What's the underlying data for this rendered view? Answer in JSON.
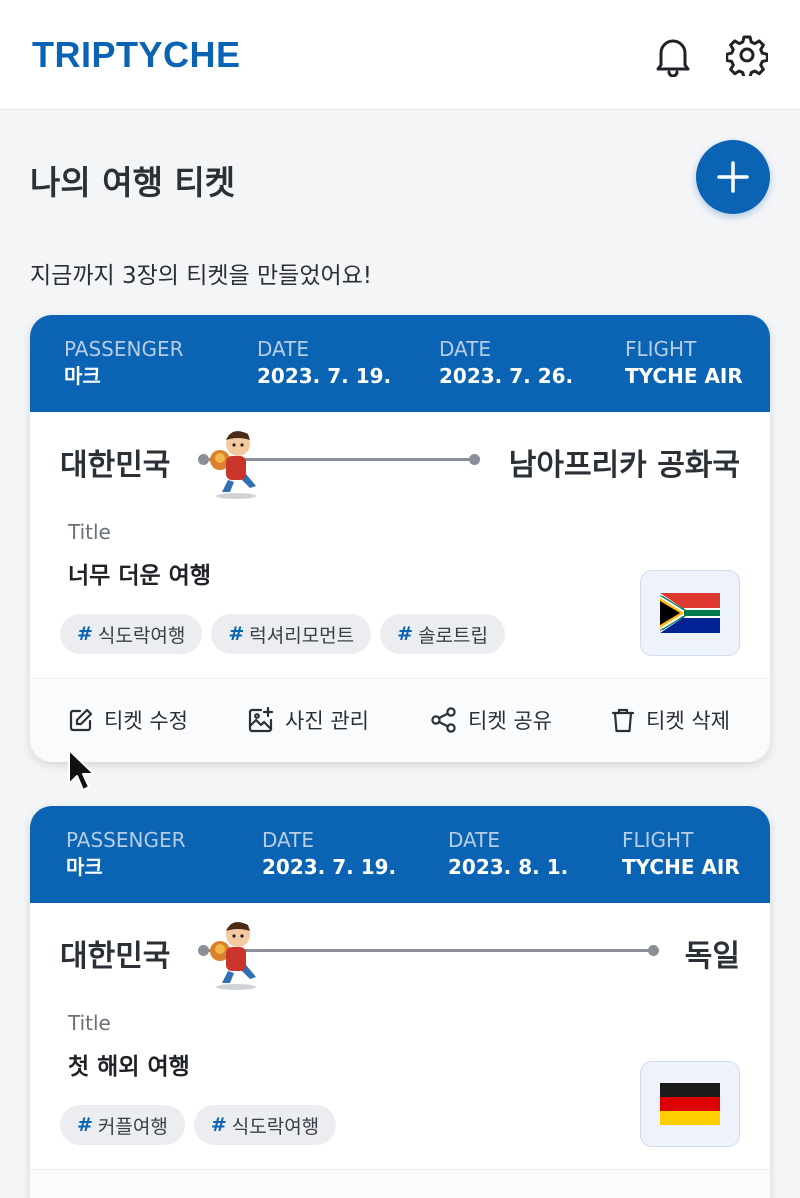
{
  "app": {
    "logo": "TRIPTYCHE"
  },
  "header_icons": [
    "bell-icon",
    "gear-icon"
  ],
  "page": {
    "title": "나의 여행 티켓",
    "subtitle": "지금까지 3장의 티켓을 만들었어요!",
    "add_icon": "plus-icon"
  },
  "labels": {
    "passenger": "PASSENGER",
    "date": "DATE",
    "flight": "FLIGHT",
    "title": "Title",
    "hash": "#"
  },
  "actions": {
    "edit": "티켓 수정",
    "photos": "사진 관리",
    "share": "티켓 공유",
    "delete": "티켓 삭제"
  },
  "tickets": [
    {
      "passenger": "마크",
      "date_start": "2023. 7. 19.",
      "date_end": "2023. 7. 26.",
      "flight": "TYCHE AIR",
      "from": "대한민국",
      "to": "남아프리카 공화국",
      "title": "너무 더운 여행",
      "tags": [
        "식도락여행",
        "럭셔리모먼트",
        "솔로트립"
      ],
      "flag": "south-africa-flag"
    },
    {
      "passenger": "마크",
      "date_start": "2023. 7. 19.",
      "date_end": "2023. 8. 1.",
      "flight": "TYCHE AIR",
      "from": "대한민국",
      "to": "독일",
      "title": "첫 해외 여행",
      "tags": [
        "커플여행",
        "식도락여행"
      ],
      "flag": "germany-flag"
    }
  ],
  "colors": {
    "brand": "#0a63b3",
    "background": "#f4f5f7",
    "card": "#ffffff",
    "tag_bg": "#ebedf0"
  }
}
